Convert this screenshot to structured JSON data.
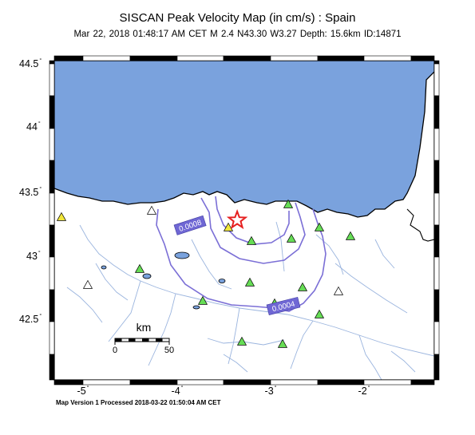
{
  "map": {
    "title": "SISCAN Peak Velocity Map (in cm/s) : Spain",
    "subtitle": "Mar 22, 2018 01:48:17 AM CET   M 2.4   N43.30 W3.27   Depth: 15.6km   ID:14871",
    "footer": "Map Version 1 Processed 2018-03-22 01:50:04 AM CET",
    "lat_labels": [
      "44.5",
      "44",
      "43.5",
      "43",
      "42.5"
    ],
    "lon_labels": [
      "-5",
      "-4",
      "-3",
      "-2"
    ],
    "degree_symbol": "°",
    "contours": [
      {
        "label": "0.0008"
      },
      {
        "label": "0.0004"
      }
    ],
    "scale_bar": {
      "unit": "km",
      "min": "0",
      "max": "50"
    },
    "colors": {
      "sea": "#7aa2dd",
      "contour": "#7b6fd6",
      "contour_label_bg": "#6f67d4",
      "river": "#9ab4de",
      "station_green": "#66dd55",
      "station_yellow": "#f1e63a",
      "station_white": "#ffffff",
      "epicenter": "#e62020"
    },
    "epicenter": {
      "lat": 43.3,
      "lon": -3.27
    },
    "stations": [
      {
        "type": "yellow"
      },
      {
        "type": "yellow"
      },
      {
        "type": "white"
      },
      {
        "type": "white"
      },
      {
        "type": "white"
      },
      {
        "type": "green"
      },
      {
        "type": "green"
      },
      {
        "type": "green"
      },
      {
        "type": "green"
      },
      {
        "type": "green"
      },
      {
        "type": "green"
      },
      {
        "type": "green"
      },
      {
        "type": "green"
      },
      {
        "type": "green"
      },
      {
        "type": "green"
      },
      {
        "type": "green"
      },
      {
        "type": "green"
      },
      {
        "type": "green"
      },
      {
        "type": "green"
      },
      {
        "type": "green"
      }
    ]
  }
}
